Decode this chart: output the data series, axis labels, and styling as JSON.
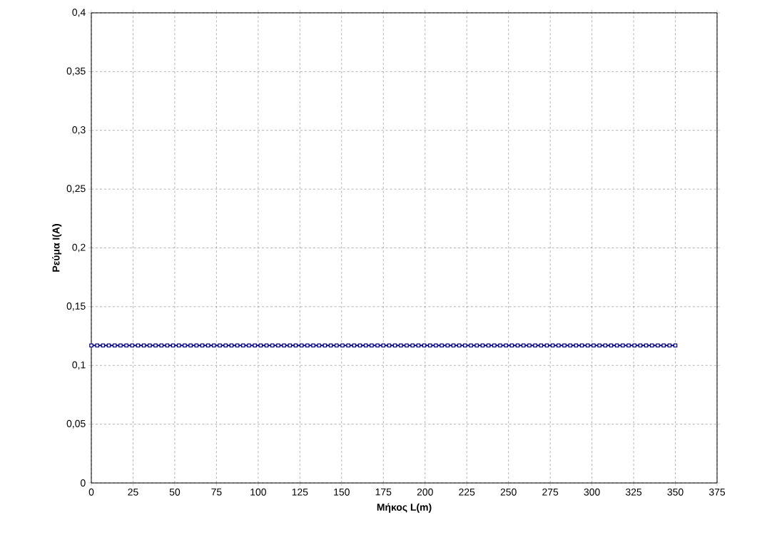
{
  "chart_data": {
    "type": "line",
    "xlabel": "Μήκος L(m)",
    "ylabel": "Ρεύμα I(A)",
    "x": [
      0,
      3.5,
      7,
      10.5,
      14,
      17.5,
      21,
      24.5,
      28,
      31.5,
      35,
      38.5,
      42,
      45.5,
      49,
      52.5,
      56,
      59.5,
      63,
      66.5,
      70,
      73.5,
      77,
      80.5,
      84,
      87.5,
      91,
      94.5,
      98,
      101.5,
      105,
      108.5,
      112,
      115.5,
      119,
      122.5,
      126,
      129.5,
      133,
      136.5,
      140,
      143.5,
      147,
      150.5,
      154,
      157.5,
      161,
      164.5,
      168,
      171.5,
      175,
      178.5,
      182,
      185.5,
      189,
      192.5,
      196,
      199.5,
      203,
      206.5,
      210,
      213.5,
      217,
      220.5,
      224,
      227.5,
      231,
      234.5,
      238,
      241.5,
      245,
      248.5,
      252,
      255.5,
      259,
      262.5,
      266,
      269.5,
      273,
      276.5,
      280,
      283.5,
      287,
      290.5,
      294,
      297.5,
      301,
      304.5,
      308,
      311.5,
      315,
      318.5,
      322,
      325.5,
      329,
      332.5,
      336,
      339.5,
      343,
      346.5,
      350
    ],
    "series": [
      {
        "color": "#000080",
        "values": [
          0.117,
          0.117,
          0.117,
          0.117,
          0.117,
          0.117,
          0.117,
          0.117,
          0.117,
          0.117,
          0.117,
          0.117,
          0.117,
          0.117,
          0.117,
          0.117,
          0.117,
          0.117,
          0.117,
          0.117,
          0.117,
          0.117,
          0.117,
          0.117,
          0.117,
          0.117,
          0.117,
          0.117,
          0.117,
          0.117,
          0.117,
          0.117,
          0.117,
          0.117,
          0.117,
          0.117,
          0.117,
          0.117,
          0.117,
          0.117,
          0.117,
          0.117,
          0.117,
          0.117,
          0.117,
          0.117,
          0.117,
          0.117,
          0.117,
          0.117,
          0.117,
          0.117,
          0.117,
          0.117,
          0.117,
          0.117,
          0.117,
          0.117,
          0.117,
          0.117,
          0.117,
          0.117,
          0.117,
          0.117,
          0.117,
          0.117,
          0.117,
          0.117,
          0.117,
          0.117,
          0.117,
          0.117,
          0.117,
          0.117,
          0.117,
          0.117,
          0.117,
          0.117,
          0.117,
          0.117,
          0.117,
          0.117,
          0.117,
          0.117,
          0.117,
          0.117,
          0.117,
          0.117,
          0.117,
          0.117,
          0.117,
          0.117,
          0.117,
          0.117,
          0.117,
          0.117,
          0.117,
          0.117,
          0.117,
          0.117,
          0.117
        ]
      }
    ],
    "xlim": [
      0,
      375
    ],
    "ylim": [
      0,
      0.4
    ],
    "xticks": [
      0,
      25,
      50,
      75,
      100,
      125,
      150,
      175,
      200,
      225,
      250,
      275,
      300,
      325,
      350,
      375
    ],
    "yticks": [
      {
        "value": 0,
        "label": "0"
      },
      {
        "value": 0.05,
        "label": "0,05"
      },
      {
        "value": 0.1,
        "label": "0,1"
      },
      {
        "value": 0.15,
        "label": "0,15"
      },
      {
        "value": 0.2,
        "label": "0,2"
      },
      {
        "value": 0.25,
        "label": "0,25"
      },
      {
        "value": 0.3,
        "label": "0,3"
      },
      {
        "value": 0.35,
        "label": "0,35"
      },
      {
        "value": 0.4,
        "label": "0,4"
      }
    ],
    "grid": true,
    "marker": "square",
    "line_style": "solid"
  }
}
